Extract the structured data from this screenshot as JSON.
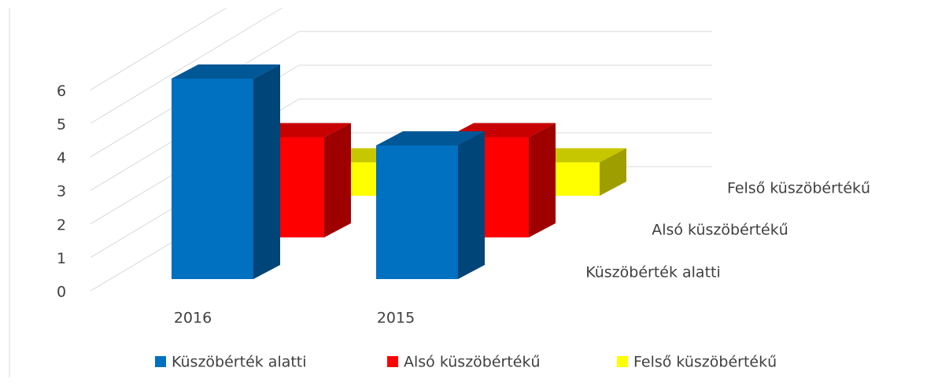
{
  "chart_data": {
    "type": "bar3d",
    "categories": [
      "2016",
      "2015"
    ],
    "series": [
      {
        "name": "Küszöbérték alatti",
        "color": "#0070c0",
        "values": [
          6,
          4
        ]
      },
      {
        "name": "Alsó küszöbértékű",
        "color": "#ff0000",
        "values": [
          3,
          3
        ]
      },
      {
        "name": "Felső küszöbértékű",
        "color": "#ffff00",
        "values": [
          1,
          1
        ]
      }
    ],
    "ylim": [
      0,
      6
    ],
    "yticks": [
      0,
      1,
      2,
      3,
      4,
      5,
      6
    ],
    "grid": true,
    "legend": "bottom"
  }
}
